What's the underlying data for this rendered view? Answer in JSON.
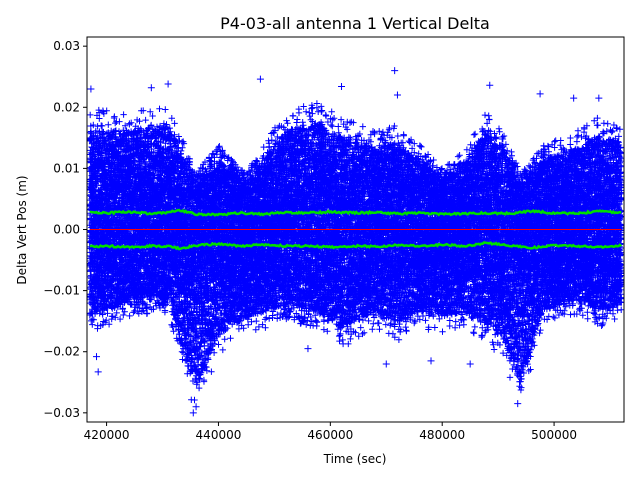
{
  "chart_data": {
    "type": "scatter",
    "title": "P4-03-all antenna 1 Vertical Delta",
    "xlabel": "Time (sec)",
    "ylabel": "Delta Vert Pos (m)",
    "xlim": [
      416500,
      512500
    ],
    "ylim": [
      -0.0315,
      0.0315
    ],
    "xticks": [
      420000,
      440000,
      460000,
      480000,
      500000
    ],
    "xtick_labels": [
      "420000",
      "440000",
      "460000",
      "480000",
      "500000"
    ],
    "yticks": [
      -0.03,
      -0.02,
      -0.01,
      0.0,
      0.01,
      0.02,
      0.03
    ],
    "ytick_labels": [
      "−0.03",
      "−0.02",
      "−0.01",
      "0.00",
      "0.01",
      "0.02",
      "0.03"
    ],
    "grid": false,
    "legend": "none",
    "colors": {
      "points": "#0000ff",
      "envelope": "#00dd00",
      "zero_line": "#ff0000"
    },
    "series": [
      {
        "marker": "plus",
        "x_range": [
          417000,
          512000
        ],
        "envelope": {
          "x": [
            417000,
            425000,
            431000,
            434000,
            436000,
            440000,
            445000,
            452000,
            458000,
            462000,
            468000,
            472000,
            476000,
            480000,
            484000,
            488000,
            491000,
            494000,
            498000,
            504000,
            508000,
            512000
          ],
          "upper": [
            0.017,
            0.017,
            0.018,
            0.012,
            0.008,
            0.012,
            0.008,
            0.017,
            0.018,
            0.016,
            0.014,
            0.015,
            0.012,
            0.009,
            0.011,
            0.017,
            0.014,
            0.008,
            0.012,
            0.014,
            0.016,
            0.015
          ],
          "lower": [
            -0.015,
            -0.012,
            -0.012,
            -0.022,
            -0.027,
            -0.018,
            -0.015,
            -0.013,
            -0.014,
            -0.017,
            -0.014,
            -0.016,
            -0.014,
            -0.015,
            -0.014,
            -0.016,
            -0.019,
            -0.026,
            -0.014,
            -0.012,
            -0.014,
            -0.013
          ]
        },
        "outliers": [
          [
            417200,
            0.023
          ],
          [
            418500,
            -0.0233
          ],
          [
            418200,
            -0.0208
          ],
          [
            428000,
            0.0232
          ],
          [
            431000,
            0.0238
          ],
          [
            435500,
            -0.03
          ],
          [
            436000,
            -0.029
          ],
          [
            447500,
            0.0246
          ],
          [
            456000,
            -0.0195
          ],
          [
            462000,
            0.0234
          ],
          [
            471500,
            0.026
          ],
          [
            472000,
            0.022
          ],
          [
            478000,
            -0.0215
          ],
          [
            488500,
            0.0236
          ],
          [
            493500,
            -0.0285
          ],
          [
            497500,
            0.0222
          ],
          [
            503500,
            0.0215
          ],
          [
            508000,
            0.0215
          ],
          [
            470000,
            -0.022
          ],
          [
            485000,
            -0.022
          ]
        ]
      },
      {
        "name": "upper-band",
        "x": [
          417000,
          420000,
          424000,
          428000,
          431000,
          433000,
          436000,
          440000,
          444000,
          448000,
          452000,
          456000,
          460000,
          464000,
          468000,
          472000,
          476000,
          480000,
          484000,
          488000,
          492000,
          496000,
          500000,
          504000,
          508000,
          512000
        ],
        "y": [
          0.0028,
          0.0027,
          0.0029,
          0.0026,
          0.0028,
          0.0032,
          0.0025,
          0.0024,
          0.0027,
          0.0025,
          0.0028,
          0.0027,
          0.0029,
          0.0027,
          0.0028,
          0.0026,
          0.0027,
          0.0025,
          0.0026,
          0.0027,
          0.0026,
          0.003,
          0.0027,
          0.0026,
          0.003,
          0.0027
        ]
      },
      {
        "name": "lower-band",
        "x": [
          417000,
          420000,
          424000,
          428000,
          431000,
          433000,
          436000,
          440000,
          444000,
          448000,
          452000,
          456000,
          460000,
          464000,
          468000,
          472000,
          476000,
          480000,
          484000,
          488000,
          492000,
          496000,
          500000,
          504000,
          508000,
          512000
        ],
        "y": [
          -0.0028,
          -0.0027,
          -0.0029,
          -0.0027,
          -0.0028,
          -0.0031,
          -0.0026,
          -0.0024,
          -0.0027,
          -0.0025,
          -0.0027,
          -0.0027,
          -0.0029,
          -0.0027,
          -0.0028,
          -0.0026,
          -0.0027,
          -0.0025,
          -0.0027,
          -0.0022,
          -0.0026,
          -0.003,
          -0.0026,
          -0.0027,
          -0.0029,
          -0.0026
        ]
      },
      {
        "name": "zero-line",
        "x": [
          417000,
          512000
        ],
        "y": [
          0.0,
          0.0
        ]
      }
    ]
  }
}
